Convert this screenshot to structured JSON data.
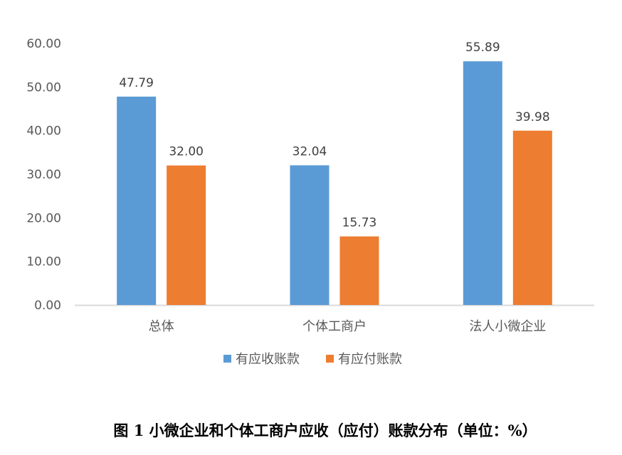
{
  "chart_data": {
    "type": "bar",
    "categories": [
      "总体",
      "个体工商户",
      "法人小微企业"
    ],
    "series": [
      {
        "name": "有应收账款",
        "values": [
          47.79,
          32.04,
          55.89
        ],
        "labels": [
          "47.79",
          "32.04",
          "55.89"
        ],
        "color": "#5B9BD5"
      },
      {
        "name": "有应付账款",
        "values": [
          32.0,
          15.73,
          39.98
        ],
        "labels": [
          "32.00",
          "15.73",
          "39.98"
        ],
        "color": "#ED7D31"
      }
    ],
    "ylim": [
      0,
      60
    ],
    "yticks": [
      "0.00",
      "10.00",
      "20.00",
      "30.00",
      "40.00",
      "50.00",
      "60.00"
    ],
    "grid": false,
    "legend": "bottom",
    "xlabel": "",
    "ylabel": ""
  },
  "caption": "图 1 小微企业和个体工商户应收（应付）账款分布（单位：%）"
}
